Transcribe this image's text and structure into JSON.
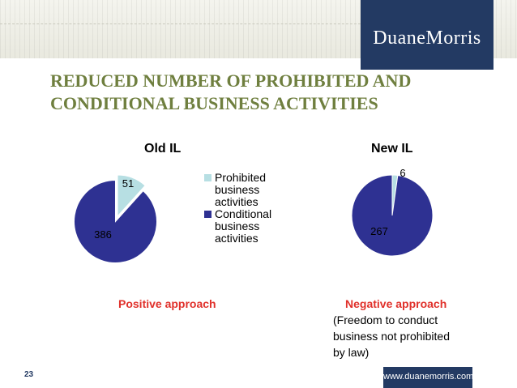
{
  "header": {
    "logo_text": "DuaneMorris"
  },
  "title": {
    "line1": "REDUCED NUMBER OF PROHIBITED AND",
    "line2": "CONDITIONAL BUSINESS ACTIVITIES"
  },
  "chart_data": [
    {
      "type": "pie",
      "title": "Old IL",
      "labels": [
        "Prohibited business activities",
        "Conditional business activities"
      ],
      "values": [
        51,
        386
      ],
      "colors": [
        "#b7dfe3",
        "#2e3192"
      ],
      "legend": "right"
    },
    {
      "type": "pie",
      "title": "New IL",
      "labels": [
        "Prohibited business activities",
        "Conditional business activities"
      ],
      "values": [
        6,
        267
      ],
      "colors": [
        "#b7dfe3",
        "#2e3192"
      ]
    }
  ],
  "legend": [
    {
      "line1": "Prohibited",
      "line2": "business",
      "line3": "activities",
      "color": "#b7dfe3"
    },
    {
      "line1": "Conditional",
      "line2": "business",
      "line3": "activities",
      "color": "#2e3192"
    }
  ],
  "approaches": {
    "positive": "Positive approach",
    "negative": "Negative approach",
    "negative_note_1": "(Freedom to conduct",
    "negative_note_2": "business not prohibited",
    "negative_note_3": "by law)"
  },
  "footer": {
    "page_number": "23",
    "url": "www.duanemorris.com"
  },
  "colors": {
    "navy": "#233a63",
    "title_green": "#6f7f3f",
    "accent_red": "#e0302a"
  }
}
